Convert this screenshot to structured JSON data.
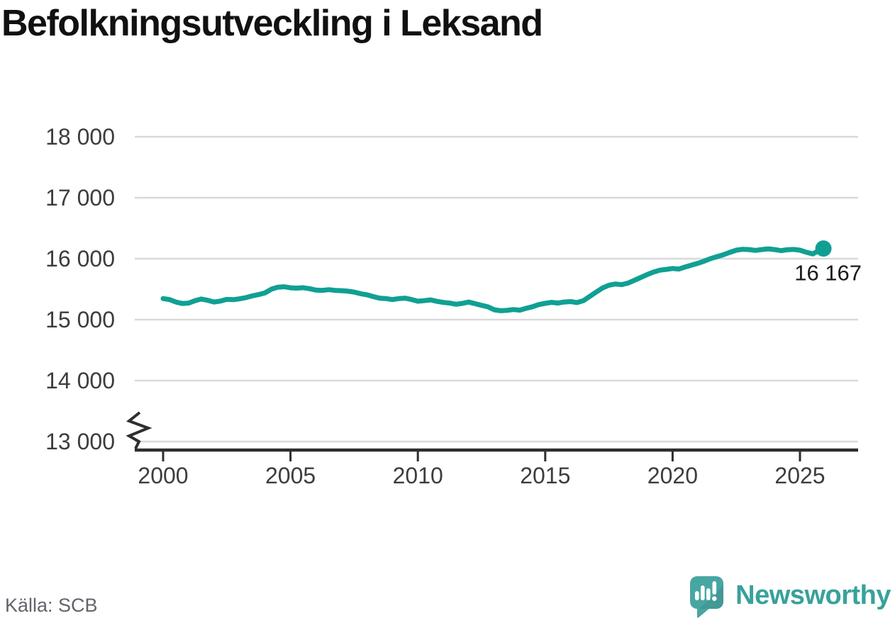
{
  "title": "Befolkningsutveckling i Leksand",
  "source": "Källa: SCB",
  "brand": {
    "wordmark": "Newsworthy",
    "icon": "newsworthy-speech-bubble-bar-chart-icon",
    "wordmark_color": "#38a19b",
    "icon_color": "#48a6a2"
  },
  "colors": {
    "line": "#10a093",
    "grid": "#d9d9d9",
    "axis": "#2e2e2e",
    "tick_text": "#3d3d3d",
    "end_label_text": "#1a1a1a"
  },
  "chart_data": {
    "type": "line",
    "title": "Befolkningsutveckling i Leksand",
    "xlabel": "",
    "ylabel": "",
    "grid": "horizontal",
    "legend": "none",
    "x_range": [
      1998.9,
      2027.3
    ],
    "y_axis": {
      "min": 13000,
      "max": 18000,
      "axis_break_below_min": true,
      "ticks": [
        {
          "value": 18000,
          "label": "18 000"
        },
        {
          "value": 17000,
          "label": "17 000"
        },
        {
          "value": 16000,
          "label": "16 000"
        },
        {
          "value": 15000,
          "label": "15 000"
        },
        {
          "value": 14000,
          "label": "14 000"
        },
        {
          "value": 13000,
          "label": "13 000"
        }
      ]
    },
    "x_ticks": [
      {
        "value": 2000,
        "label": "2000"
      },
      {
        "value": 2005,
        "label": "2005"
      },
      {
        "value": 2010,
        "label": "2010"
      },
      {
        "value": 2015,
        "label": "2015"
      },
      {
        "value": 2020,
        "label": "2020"
      },
      {
        "value": 2025,
        "label": "2025"
      }
    ],
    "end_point": {
      "x": 2025.92,
      "value": 16167,
      "label": "16 167"
    },
    "series": [
      {
        "points": [
          [
            2000.0,
            15345
          ],
          [
            2000.25,
            15330
          ],
          [
            2000.5,
            15290
          ],
          [
            2000.75,
            15265
          ],
          [
            2001.0,
            15272
          ],
          [
            2001.25,
            15310
          ],
          [
            2001.5,
            15338
          ],
          [
            2001.75,
            15318
          ],
          [
            2002.0,
            15290
          ],
          [
            2002.25,
            15305
          ],
          [
            2002.5,
            15332
          ],
          [
            2002.75,
            15328
          ],
          [
            2003.0,
            15342
          ],
          [
            2003.25,
            15362
          ],
          [
            2003.5,
            15390
          ],
          [
            2003.75,
            15412
          ],
          [
            2004.0,
            15440
          ],
          [
            2004.25,
            15500
          ],
          [
            2004.5,
            15532
          ],
          [
            2004.75,
            15540
          ],
          [
            2005.0,
            15522
          ],
          [
            2005.25,
            15518
          ],
          [
            2005.5,
            15524
          ],
          [
            2005.75,
            15508
          ],
          [
            2006.0,
            15485
          ],
          [
            2006.25,
            15480
          ],
          [
            2006.5,
            15492
          ],
          [
            2006.75,
            15480
          ],
          [
            2007.0,
            15475
          ],
          [
            2007.25,
            15468
          ],
          [
            2007.5,
            15452
          ],
          [
            2007.75,
            15425
          ],
          [
            2008.0,
            15408
          ],
          [
            2008.25,
            15378
          ],
          [
            2008.5,
            15352
          ],
          [
            2008.75,
            15345
          ],
          [
            2009.0,
            15330
          ],
          [
            2009.25,
            15345
          ],
          [
            2009.5,
            15352
          ],
          [
            2009.75,
            15330
          ],
          [
            2010.0,
            15302
          ],
          [
            2010.25,
            15312
          ],
          [
            2010.5,
            15325
          ],
          [
            2010.75,
            15300
          ],
          [
            2011.0,
            15282
          ],
          [
            2011.25,
            15272
          ],
          [
            2011.5,
            15252
          ],
          [
            2011.75,
            15268
          ],
          [
            2012.0,
            15288
          ],
          [
            2012.25,
            15262
          ],
          [
            2012.5,
            15235
          ],
          [
            2012.75,
            15210
          ],
          [
            2013.0,
            15162
          ],
          [
            2013.25,
            15146
          ],
          [
            2013.5,
            15152
          ],
          [
            2013.75,
            15166
          ],
          [
            2014.0,
            15156
          ],
          [
            2014.25,
            15186
          ],
          [
            2014.5,
            15212
          ],
          [
            2014.75,
            15248
          ],
          [
            2015.0,
            15268
          ],
          [
            2015.25,
            15284
          ],
          [
            2015.5,
            15272
          ],
          [
            2015.75,
            15290
          ],
          [
            2016.0,
            15296
          ],
          [
            2016.25,
            15280
          ],
          [
            2016.5,
            15312
          ],
          [
            2016.75,
            15382
          ],
          [
            2017.0,
            15452
          ],
          [
            2017.25,
            15520
          ],
          [
            2017.5,
            15565
          ],
          [
            2017.75,
            15585
          ],
          [
            2018.0,
            15575
          ],
          [
            2018.25,
            15600
          ],
          [
            2018.5,
            15645
          ],
          [
            2018.75,
            15692
          ],
          [
            2019.0,
            15740
          ],
          [
            2019.25,
            15780
          ],
          [
            2019.5,
            15812
          ],
          [
            2019.75,
            15825
          ],
          [
            2020.0,
            15840
          ],
          [
            2020.25,
            15830
          ],
          [
            2020.5,
            15865
          ],
          [
            2020.75,
            15895
          ],
          [
            2021.0,
            15925
          ],
          [
            2021.25,
            15962
          ],
          [
            2021.5,
            16002
          ],
          [
            2021.75,
            16035
          ],
          [
            2022.0,
            16065
          ],
          [
            2022.25,
            16105
          ],
          [
            2022.5,
            16140
          ],
          [
            2022.75,
            16155
          ],
          [
            2023.0,
            16150
          ],
          [
            2023.25,
            16136
          ],
          [
            2023.5,
            16150
          ],
          [
            2023.75,
            16162
          ],
          [
            2024.0,
            16150
          ],
          [
            2024.25,
            16132
          ],
          [
            2024.5,
            16146
          ],
          [
            2024.75,
            16152
          ],
          [
            2025.0,
            16140
          ],
          [
            2025.25,
            16106
          ],
          [
            2025.5,
            16078
          ],
          [
            2025.7,
            16124
          ],
          [
            2025.92,
            16167
          ]
        ]
      }
    ]
  }
}
